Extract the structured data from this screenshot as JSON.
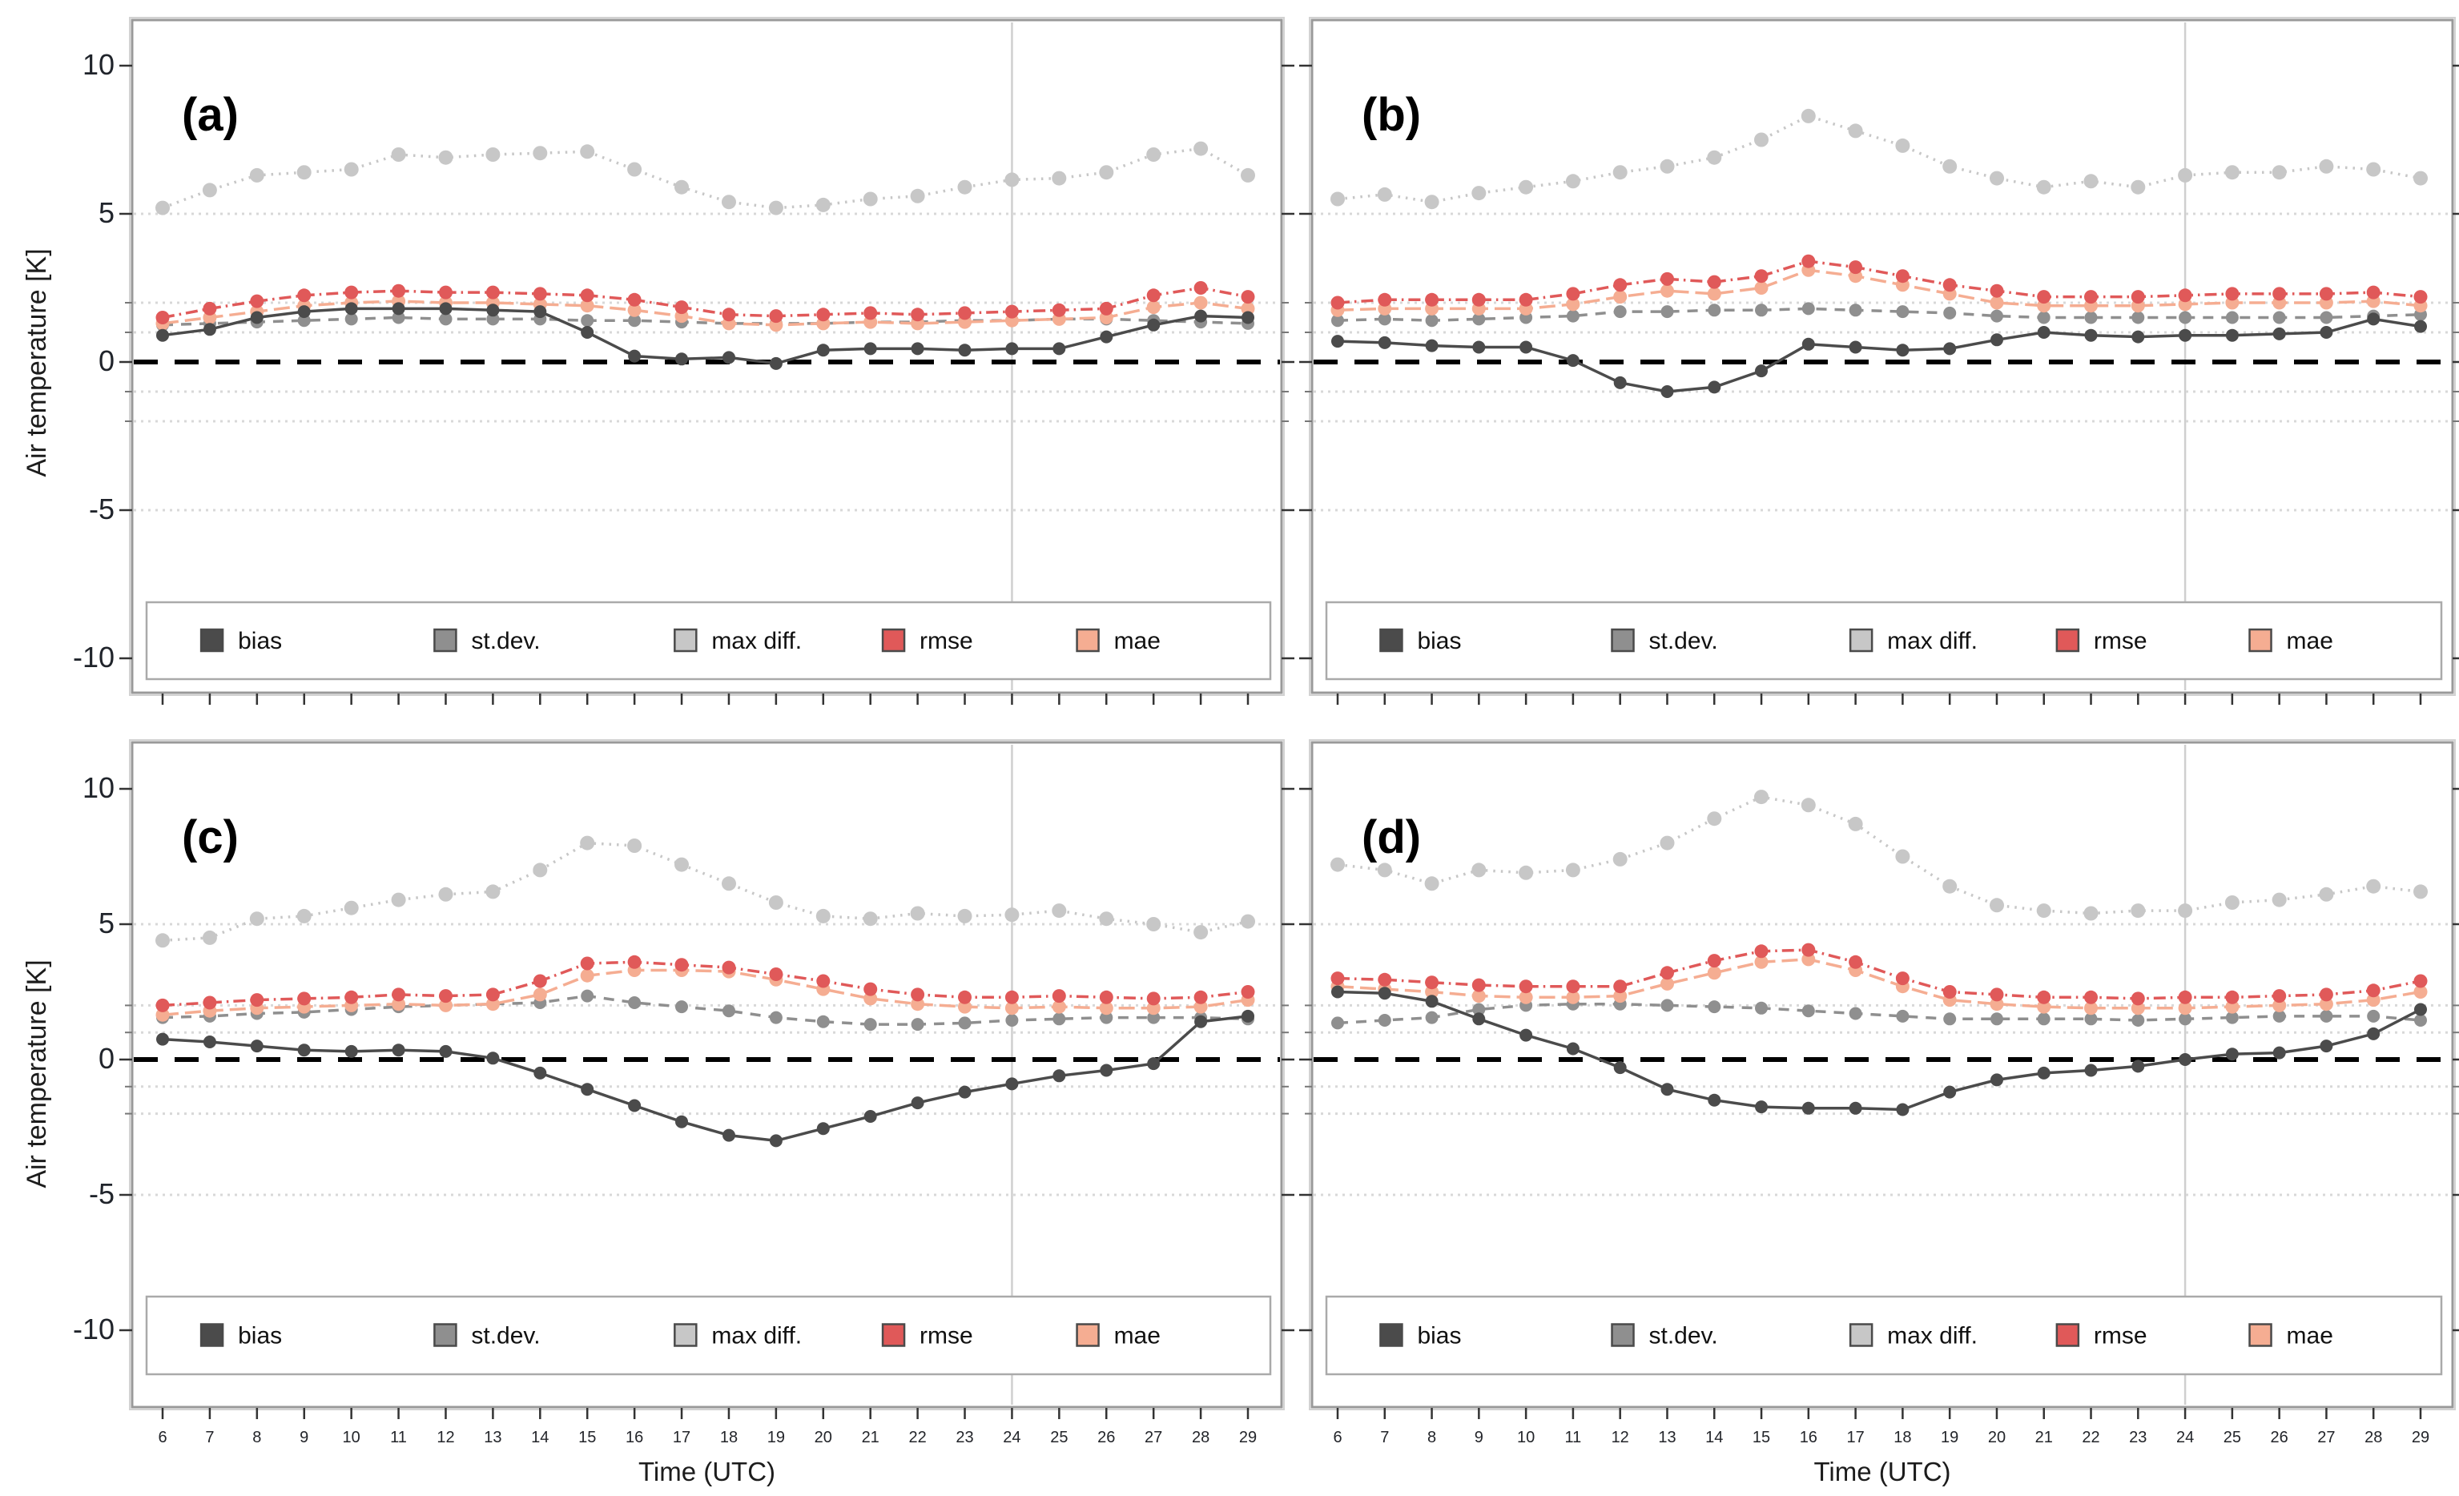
{
  "figure": {
    "ylabel": "Air temperature [K]",
    "xlabel": "Time (UTC)",
    "y_ticks": [
      10,
      5,
      0,
      -5,
      -10
    ],
    "y_minor_ticks": [
      2,
      1,
      -1,
      -2
    ],
    "gridlines_y": [
      5,
      2,
      1,
      -1,
      -2,
      -5
    ],
    "ylim": [
      -10,
      10
    ],
    "x_ticks": [
      6,
      7,
      8,
      9,
      10,
      11,
      12,
      13,
      14,
      15,
      16,
      17,
      18,
      19,
      20,
      21,
      22,
      23,
      24,
      25,
      26,
      27,
      28,
      29
    ],
    "zero_reference_line_y": 0,
    "day_separator_x": 24,
    "legend": [
      "bias",
      "st.dev.",
      "max diff.",
      "rmse",
      "mae"
    ],
    "colors": {
      "bias": "#4b4b4b",
      "stdev": "#8f8f8f",
      "maxdiff": "#c7c7c7",
      "rmse": "#e05959",
      "mae": "#f5ad92",
      "zero_line": "#000000",
      "grid": "#d8d8d8",
      "day_separator": "#cfcfcf",
      "panel_border": "#999999",
      "legend_border": "#aaaaaa",
      "tick": "#333333"
    }
  },
  "chart_data": [
    {
      "type": "line",
      "panel_label": "(a)",
      "show_y_tick_labels": true,
      "show_x_tick_labels": false,
      "series": [
        {
          "name": "bias",
          "color": "#4b4b4b",
          "line_style": "solid",
          "values": [
            0.9,
            1.1,
            1.5,
            1.7,
            1.8,
            1.8,
            1.8,
            1.75,
            1.7,
            1.0,
            0.2,
            0.1,
            0.15,
            -0.05,
            0.4,
            0.45,
            0.45,
            0.4,
            0.45,
            0.45,
            0.85,
            1.25,
            1.55,
            1.5
          ]
        },
        {
          "name": "st.dev.",
          "color": "#8f8f8f",
          "line_style": "dashed",
          "values": [
            1.25,
            1.3,
            1.35,
            1.4,
            1.45,
            1.5,
            1.45,
            1.45,
            1.45,
            1.4,
            1.4,
            1.35,
            1.3,
            1.3,
            1.3,
            1.35,
            1.35,
            1.4,
            1.4,
            1.45,
            1.45,
            1.4,
            1.35,
            1.3
          ]
        },
        {
          "name": "max diff.",
          "color": "#c7c7c7",
          "line_style": "dotted",
          "values": [
            5.2,
            5.8,
            6.3,
            6.4,
            6.5,
            7.0,
            6.9,
            7.0,
            7.05,
            7.1,
            6.5,
            5.9,
            5.4,
            5.2,
            5.3,
            5.5,
            5.6,
            5.9,
            6.15,
            6.2,
            6.4,
            7.0,
            7.2,
            6.3
          ]
        },
        {
          "name": "rmse",
          "color": "#e05959",
          "line_style": "dashdot",
          "values": [
            1.5,
            1.8,
            2.05,
            2.25,
            2.35,
            2.4,
            2.35,
            2.35,
            2.3,
            2.25,
            2.1,
            1.85,
            1.6,
            1.55,
            1.6,
            1.65,
            1.6,
            1.65,
            1.7,
            1.75,
            1.8,
            2.25,
            2.5,
            2.2
          ]
        },
        {
          "name": "mae",
          "color": "#f5ad92",
          "line_style": "longdash",
          "values": [
            1.3,
            1.5,
            1.7,
            1.9,
            2.0,
            2.05,
            2.0,
            2.0,
            1.95,
            1.9,
            1.75,
            1.55,
            1.3,
            1.25,
            1.3,
            1.35,
            1.3,
            1.35,
            1.4,
            1.45,
            1.5,
            1.85,
            2.0,
            1.8
          ]
        }
      ]
    },
    {
      "type": "line",
      "panel_label": "(b)",
      "show_y_tick_labels": false,
      "show_x_tick_labels": false,
      "series": [
        {
          "name": "bias",
          "color": "#4b4b4b",
          "line_style": "solid",
          "values": [
            0.7,
            0.65,
            0.55,
            0.5,
            0.5,
            0.05,
            -0.7,
            -1.0,
            -0.85,
            -0.3,
            0.6,
            0.5,
            0.4,
            0.45,
            0.75,
            1.0,
            0.9,
            0.85,
            0.9,
            0.9,
            0.95,
            1.0,
            1.45,
            1.2
          ]
        },
        {
          "name": "st.dev.",
          "color": "#8f8f8f",
          "line_style": "dashed",
          "values": [
            1.4,
            1.45,
            1.4,
            1.45,
            1.5,
            1.55,
            1.7,
            1.7,
            1.75,
            1.75,
            1.8,
            1.75,
            1.7,
            1.65,
            1.55,
            1.5,
            1.5,
            1.5,
            1.5,
            1.5,
            1.5,
            1.5,
            1.55,
            1.6
          ]
        },
        {
          "name": "max diff.",
          "color": "#c7c7c7",
          "line_style": "dotted",
          "values": [
            5.5,
            5.65,
            5.4,
            5.7,
            5.9,
            6.1,
            6.4,
            6.6,
            6.9,
            7.5,
            8.3,
            7.8,
            7.3,
            6.6,
            6.2,
            5.9,
            6.1,
            5.9,
            6.3,
            6.4,
            6.4,
            6.6,
            6.5,
            6.2
          ]
        },
        {
          "name": "rmse",
          "color": "#e05959",
          "line_style": "dashdot",
          "values": [
            2.0,
            2.1,
            2.1,
            2.1,
            2.1,
            2.3,
            2.6,
            2.8,
            2.7,
            2.9,
            3.4,
            3.2,
            2.9,
            2.6,
            2.4,
            2.2,
            2.2,
            2.2,
            2.25,
            2.3,
            2.3,
            2.3,
            2.35,
            2.2
          ]
        },
        {
          "name": "mae",
          "color": "#f5ad92",
          "line_style": "longdash",
          "values": [
            1.75,
            1.8,
            1.8,
            1.8,
            1.8,
            1.95,
            2.2,
            2.4,
            2.3,
            2.5,
            3.1,
            2.9,
            2.6,
            2.3,
            2.0,
            1.9,
            1.9,
            1.9,
            1.95,
            2.0,
            2.0,
            2.0,
            2.05,
            1.9
          ]
        }
      ]
    },
    {
      "type": "line",
      "panel_label": "(c)",
      "show_y_tick_labels": true,
      "show_x_tick_labels": true,
      "series": [
        {
          "name": "bias",
          "color": "#4b4b4b",
          "line_style": "solid",
          "values": [
            0.75,
            0.65,
            0.5,
            0.35,
            0.3,
            0.35,
            0.3,
            0.05,
            -0.5,
            -1.1,
            -1.7,
            -2.3,
            -2.8,
            -3.0,
            -2.55,
            -2.1,
            -1.6,
            -1.2,
            -0.9,
            -0.6,
            -0.4,
            -0.15,
            1.4,
            1.6
          ]
        },
        {
          "name": "st.dev.",
          "color": "#8f8f8f",
          "line_style": "dashed",
          "values": [
            1.55,
            1.6,
            1.7,
            1.75,
            1.85,
            1.95,
            2.0,
            2.05,
            2.1,
            2.35,
            2.1,
            1.95,
            1.8,
            1.55,
            1.4,
            1.3,
            1.3,
            1.35,
            1.45,
            1.5,
            1.55,
            1.55,
            1.55,
            1.5
          ]
        },
        {
          "name": "max diff.",
          "color": "#c7c7c7",
          "line_style": "dotted",
          "values": [
            4.4,
            4.5,
            5.2,
            5.3,
            5.6,
            5.9,
            6.1,
            6.2,
            7.0,
            8.0,
            7.9,
            7.2,
            6.5,
            5.8,
            5.3,
            5.2,
            5.4,
            5.3,
            5.35,
            5.5,
            5.2,
            5.0,
            4.7,
            5.1
          ]
        },
        {
          "name": "rmse",
          "color": "#e05959",
          "line_style": "dashdot",
          "values": [
            2.0,
            2.1,
            2.2,
            2.25,
            2.3,
            2.4,
            2.35,
            2.4,
            2.9,
            3.55,
            3.6,
            3.5,
            3.4,
            3.15,
            2.9,
            2.6,
            2.4,
            2.3,
            2.3,
            2.35,
            2.3,
            2.25,
            2.3,
            2.5
          ]
        },
        {
          "name": "mae",
          "color": "#f5ad92",
          "line_style": "longdash",
          "values": [
            1.65,
            1.8,
            1.9,
            1.95,
            2.0,
            2.05,
            2.0,
            2.05,
            2.4,
            3.1,
            3.3,
            3.3,
            3.25,
            2.95,
            2.6,
            2.25,
            2.05,
            1.95,
            1.9,
            1.95,
            1.9,
            1.9,
            1.95,
            2.2
          ]
        }
      ]
    },
    {
      "type": "line",
      "panel_label": "(d)",
      "show_y_tick_labels": false,
      "show_x_tick_labels": true,
      "series": [
        {
          "name": "bias",
          "color": "#4b4b4b",
          "line_style": "solid",
          "values": [
            2.5,
            2.45,
            2.15,
            1.5,
            0.9,
            0.4,
            -0.3,
            -1.1,
            -1.5,
            -1.75,
            -1.8,
            -1.8,
            -1.85,
            -1.2,
            -0.75,
            -0.5,
            -0.4,
            -0.25,
            0.0,
            0.2,
            0.25,
            0.5,
            0.95,
            1.85
          ]
        },
        {
          "name": "st.dev.",
          "color": "#8f8f8f",
          "line_style": "dashed",
          "values": [
            1.35,
            1.45,
            1.55,
            1.85,
            2.0,
            2.05,
            2.05,
            2.0,
            1.95,
            1.9,
            1.8,
            1.7,
            1.6,
            1.5,
            1.5,
            1.5,
            1.5,
            1.45,
            1.5,
            1.55,
            1.6,
            1.6,
            1.6,
            1.45
          ]
        },
        {
          "name": "max diff.",
          "color": "#c7c7c7",
          "line_style": "dotted",
          "values": [
            7.2,
            7.0,
            6.5,
            7.0,
            6.9,
            7.0,
            7.4,
            8.0,
            8.9,
            9.7,
            9.4,
            8.7,
            7.5,
            6.4,
            5.7,
            5.5,
            5.4,
            5.5,
            5.5,
            5.8,
            5.9,
            6.1,
            6.4,
            6.2
          ]
        },
        {
          "name": "rmse",
          "color": "#e05959",
          "line_style": "dashdot",
          "values": [
            3.0,
            2.95,
            2.85,
            2.75,
            2.7,
            2.7,
            2.7,
            3.2,
            3.65,
            4.0,
            4.05,
            3.6,
            3.0,
            2.5,
            2.4,
            2.3,
            2.3,
            2.25,
            2.3,
            2.3,
            2.35,
            2.4,
            2.55,
            2.9
          ]
        },
        {
          "name": "mae",
          "color": "#f5ad92",
          "line_style": "longdash",
          "values": [
            2.7,
            2.6,
            2.5,
            2.35,
            2.3,
            2.3,
            2.35,
            2.8,
            3.2,
            3.6,
            3.7,
            3.3,
            2.7,
            2.2,
            2.05,
            1.95,
            1.9,
            1.9,
            1.9,
            1.95,
            2.0,
            2.05,
            2.2,
            2.5
          ]
        }
      ]
    }
  ]
}
